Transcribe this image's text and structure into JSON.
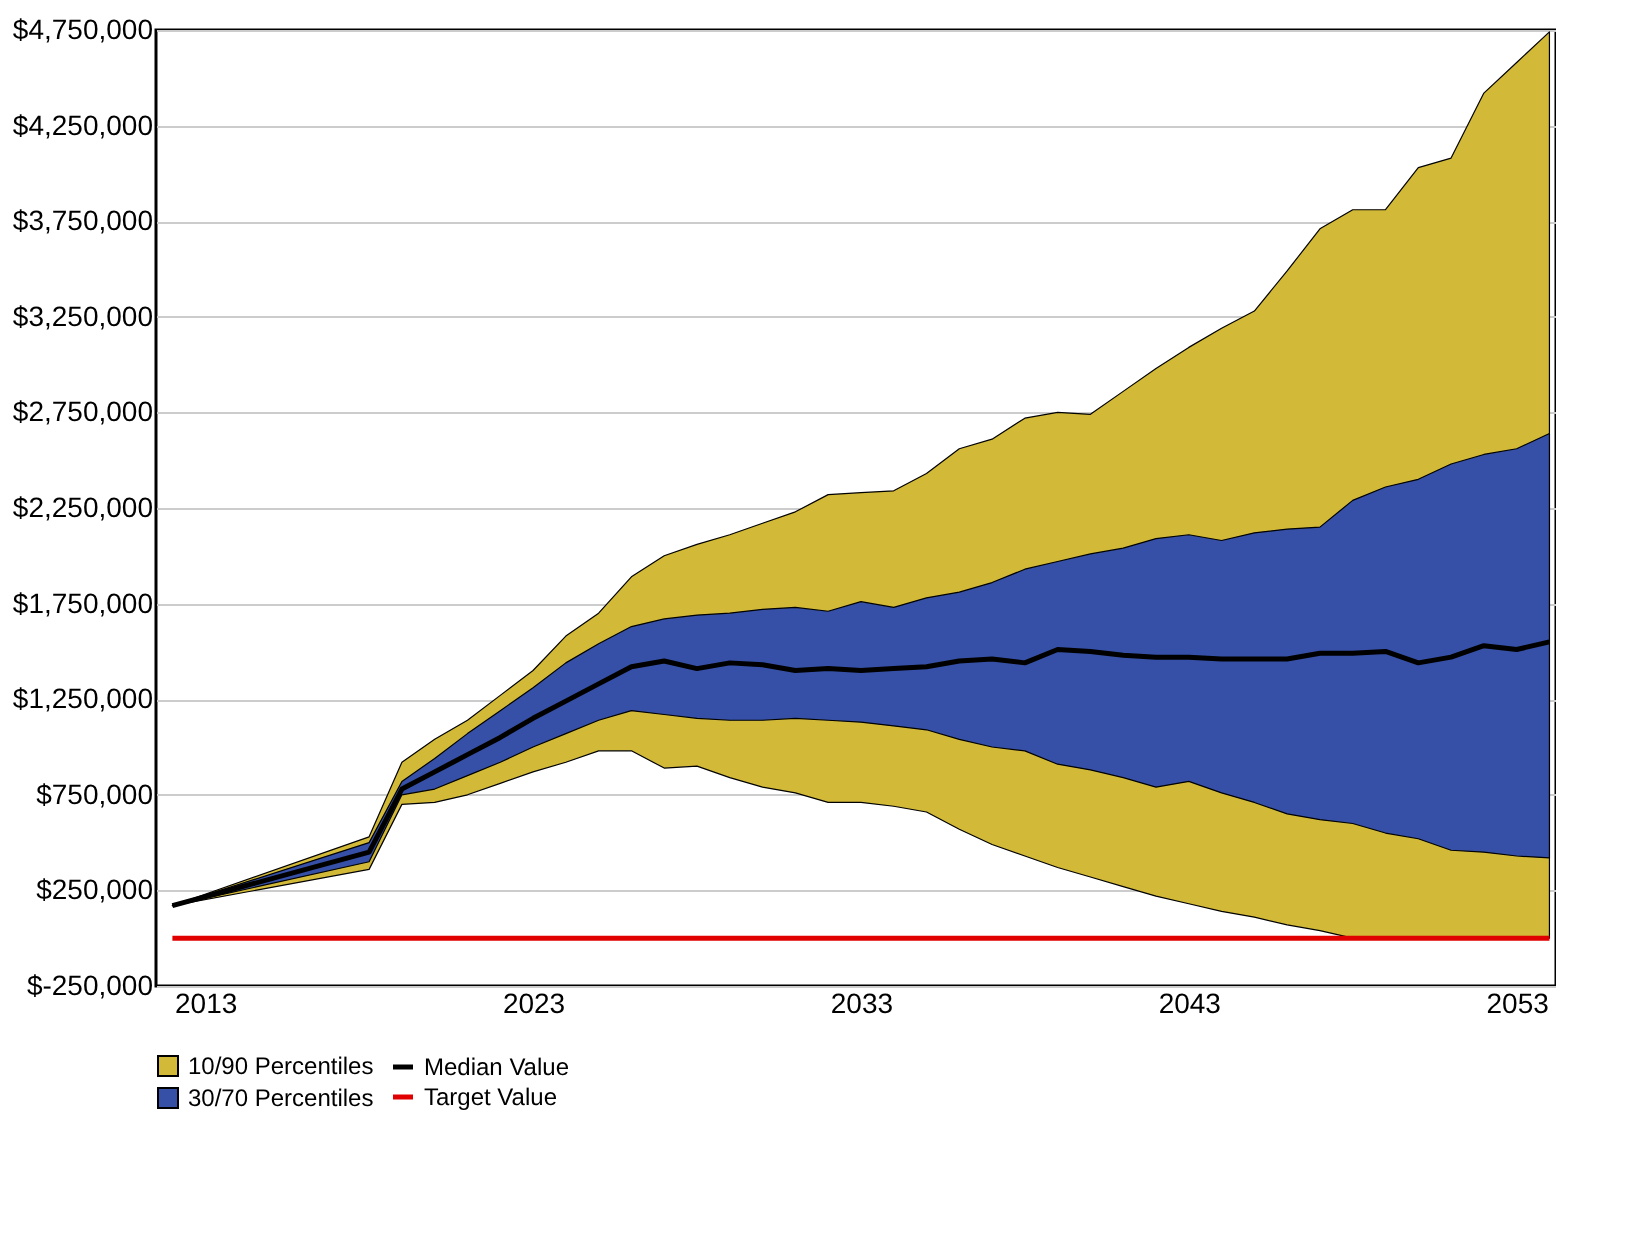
{
  "chart_data": {
    "type": "area",
    "x": [
      2012,
      2018,
      2019,
      2020,
      2021,
      2022,
      2023,
      2024,
      2025,
      2026,
      2027,
      2028,
      2029,
      2030,
      2031,
      2032,
      2033,
      2034,
      2035,
      2036,
      2037,
      2038,
      2039,
      2040,
      2041,
      2042,
      2043,
      2044,
      2045,
      2046,
      2047,
      2048,
      2049,
      2050,
      2051,
      2052,
      2053,
      2054
    ],
    "series": [
      {
        "name": "10/90 Percentiles",
        "color": "#d2b938",
        "values": [
          null,
          null,
          null,
          null,
          null,
          null,
          null,
          null,
          null,
          null,
          null,
          null,
          null,
          null,
          null,
          null,
          null,
          null,
          null,
          null,
          null,
          null,
          null,
          null,
          null,
          null,
          null,
          null,
          null,
          null,
          null,
          null,
          null,
          null,
          null,
          null,
          null,
          null
        ],
        "lower": [
          170000,
          360000,
          700000,
          710000,
          750000,
          810000,
          870000,
          920000,
          980000,
          980000,
          890000,
          900000,
          840000,
          790000,
          760000,
          710000,
          710000,
          690000,
          660000,
          570000,
          490000,
          430000,
          370000,
          320000,
          270000,
          220000,
          180000,
          140000,
          110000,
          70000,
          40000,
          0,
          0,
          0,
          0,
          0,
          0,
          0
        ],
        "upper": [
          170000,
          530000,
          920000,
          1040000,
          1140000,
          1270000,
          1400000,
          1580000,
          1700000,
          1890000,
          2000000,
          2060000,
          2110000,
          2170000,
          2230000,
          2320000,
          2330000,
          2340000,
          2430000,
          2560000,
          2610000,
          2720000,
          2750000,
          2740000,
          2860000,
          2980000,
          3090000,
          3190000,
          3280000,
          3490000,
          3710000,
          3810000,
          3810000,
          4030000,
          4080000,
          4420000,
          4580000,
          4740000
        ]
      },
      {
        "name": "30/70 Percentiles",
        "color": "#3550a6",
        "values": [
          null,
          null,
          null,
          null,
          null,
          null,
          null,
          null,
          null,
          null,
          null,
          null,
          null,
          null,
          null,
          null,
          null,
          null,
          null,
          null,
          null,
          null,
          null,
          null,
          null,
          null,
          null,
          null,
          null,
          null,
          null,
          null,
          null,
          null,
          null,
          null,
          null,
          null
        ],
        "lower": [
          170000,
          400000,
          750000,
          780000,
          850000,
          920000,
          1000000,
          1070000,
          1140000,
          1190000,
          1170000,
          1150000,
          1140000,
          1140000,
          1150000,
          1140000,
          1130000,
          1110000,
          1090000,
          1040000,
          1000000,
          980000,
          910000,
          880000,
          840000,
          790000,
          820000,
          760000,
          710000,
          650000,
          620000,
          600000,
          550000,
          520000,
          460000,
          450000,
          430000,
          420000
        ],
        "upper": [
          170000,
          500000,
          820000,
          940000,
          1070000,
          1190000,
          1310000,
          1440000,
          1540000,
          1630000,
          1670000,
          1690000,
          1700000,
          1720000,
          1730000,
          1710000,
          1760000,
          1730000,
          1780000,
          1810000,
          1860000,
          1930000,
          1970000,
          2010000,
          2040000,
          2090000,
          2110000,
          2080000,
          2120000,
          2140000,
          2150000,
          2290000,
          2360000,
          2400000,
          2480000,
          2530000,
          2560000,
          2640000
        ]
      },
      {
        "name": "Median Value",
        "type": "line",
        "color": "#000000",
        "values": [
          170000,
          450000,
          780000,
          870000,
          960000,
          1050000,
          1150000,
          1240000,
          1330000,
          1420000,
          1450000,
          1410000,
          1440000,
          1430000,
          1400000,
          1410000,
          1400000,
          1410000,
          1420000,
          1450000,
          1460000,
          1440000,
          1510000,
          1500000,
          1480000,
          1470000,
          1470000,
          1460000,
          1460000,
          1460000,
          1490000,
          1490000,
          1500000,
          1440000,
          1470000,
          1530000,
          1510000,
          1550000
        ]
      },
      {
        "name": "Target Value",
        "type": "line",
        "color": "#e00000",
        "values": [
          0,
          0,
          0,
          0,
          0,
          0,
          0,
          0,
          0,
          0,
          0,
          0,
          0,
          0,
          0,
          0,
          0,
          0,
          0,
          0,
          0,
          0,
          0,
          0,
          0,
          0,
          0,
          0,
          0,
          0,
          0,
          0,
          0,
          0,
          0,
          0,
          0,
          0
        ]
      }
    ],
    "xlim": [
      2011.5,
      2054.2
    ],
    "xticks": [
      2013,
      2023,
      2033,
      2043,
      2053
    ],
    "ylim": [
      -250000,
      4750000
    ],
    "yticks": [
      {
        "value": -250000,
        "label": "$-250,000"
      },
      {
        "value": 250000,
        "label": "$250,000"
      },
      {
        "value": 750000,
        "label": "$750,000"
      },
      {
        "value": 1250000,
        "label": "$1,250,000"
      },
      {
        "value": 1750000,
        "label": "$1,750,000"
      },
      {
        "value": 2250000,
        "label": "$2,250,000"
      },
      {
        "value": 2750000,
        "label": "$2,750,000"
      },
      {
        "value": 3250000,
        "label": "$3,250,000"
      },
      {
        "value": 3750000,
        "label": "$3,750,000"
      },
      {
        "value": 4250000,
        "label": "$4,250,000"
      },
      {
        "value": 4750000,
        "label": "$4,750,000"
      }
    ],
    "grid": "y",
    "legend": "bottom"
  }
}
